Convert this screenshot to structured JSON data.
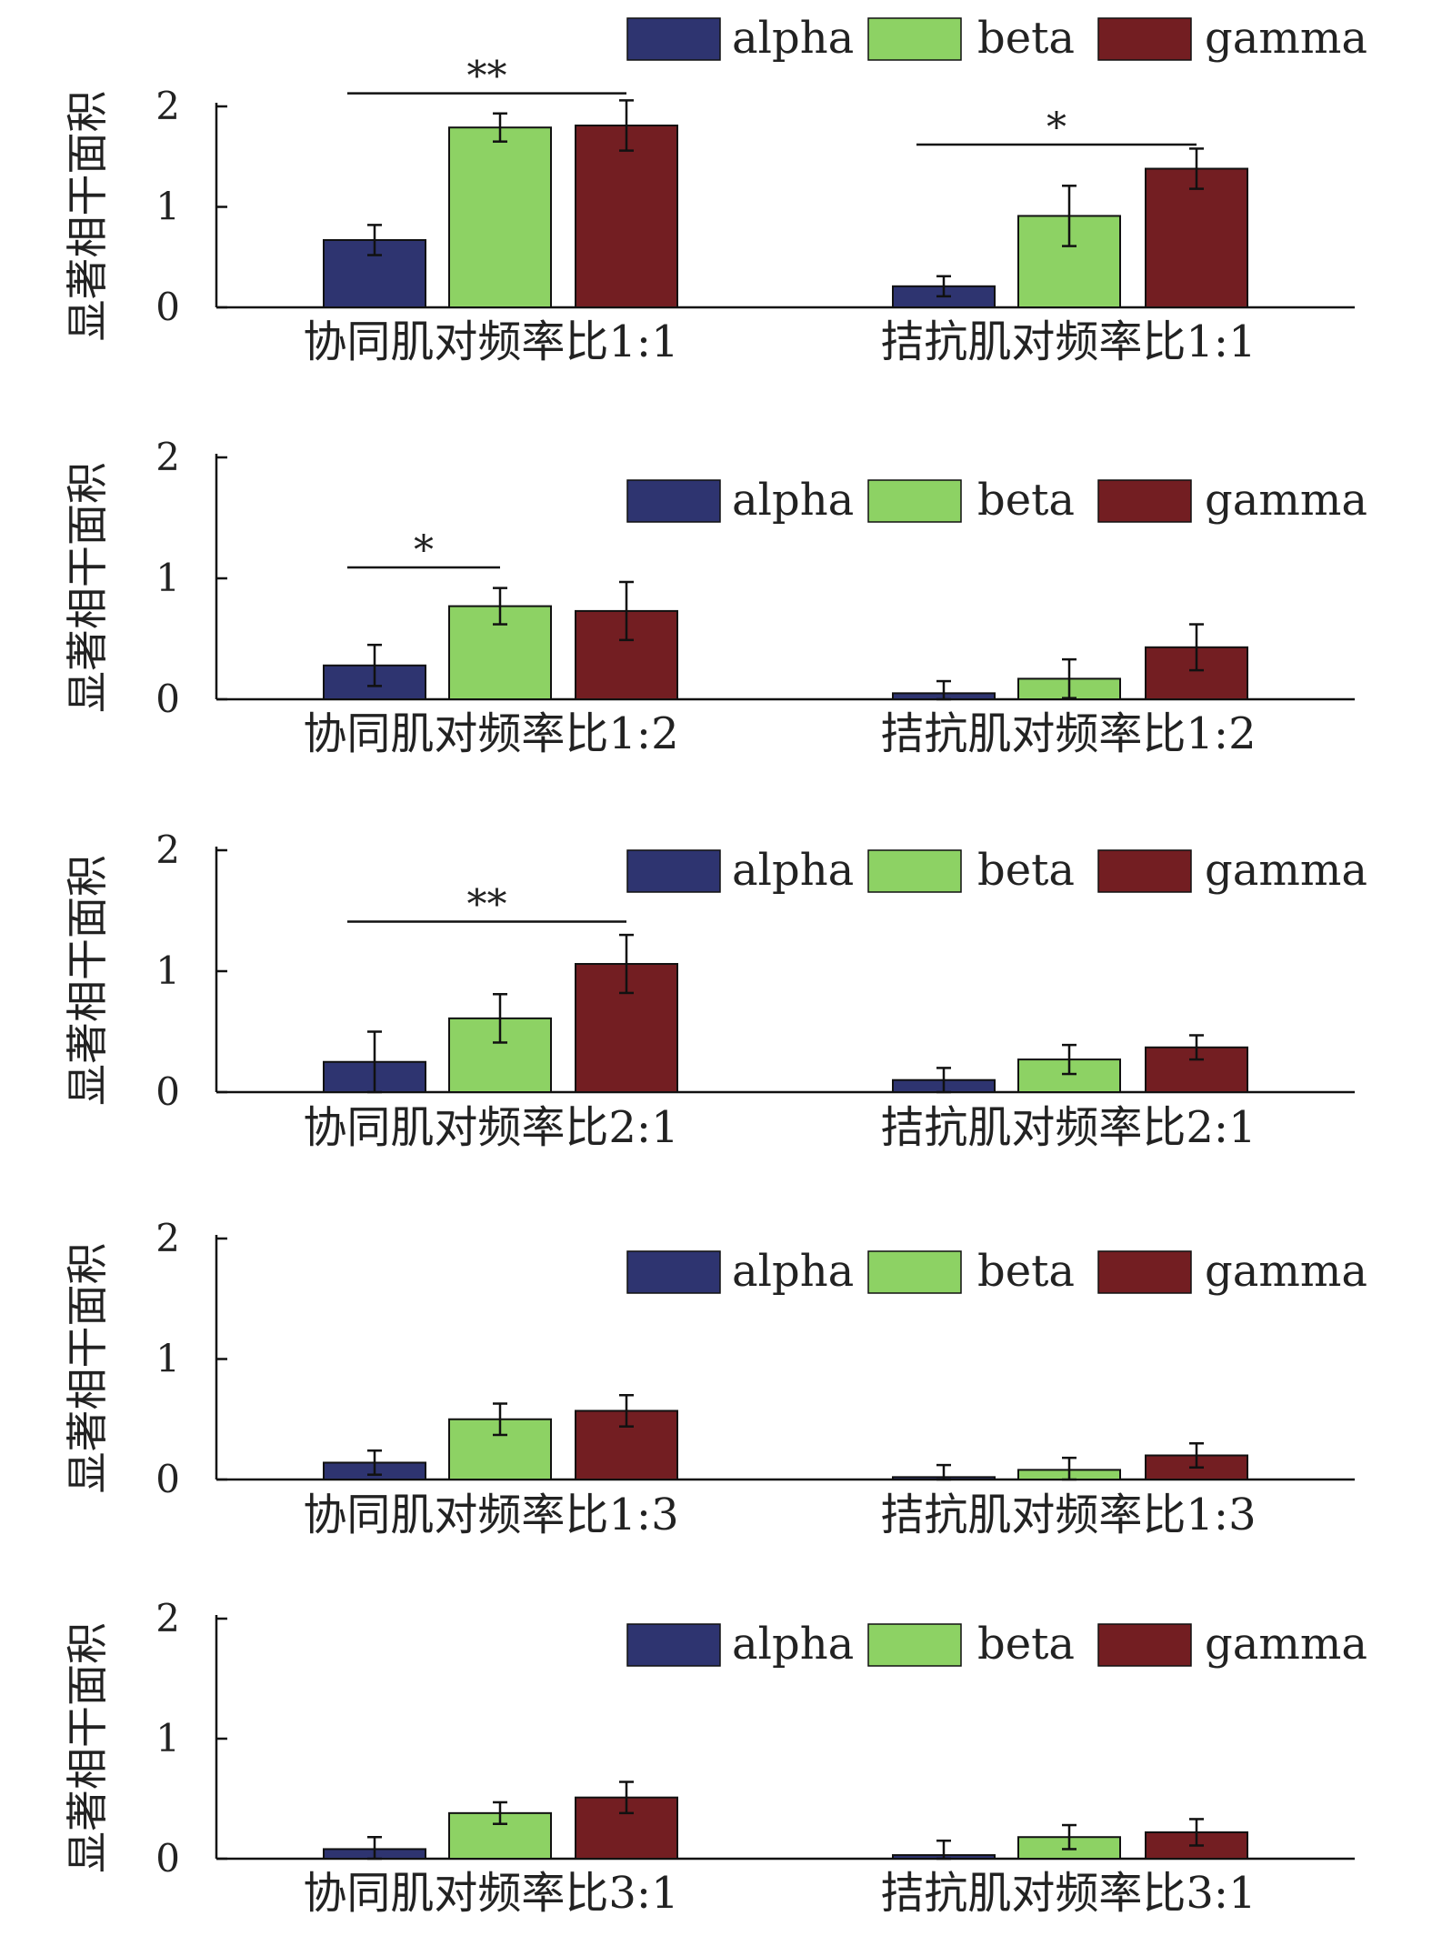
{
  "colors": {
    "alpha": "#2e3470",
    "beta": "#8dd264",
    "gamma": "#731e22",
    "axis": "#111111"
  },
  "legend_labels": [
    "alpha",
    "beta",
    "gamma"
  ],
  "chart_data": [
    {
      "type": "bar",
      "ylabel": "显著相干面积",
      "ylim": [
        0,
        2
      ],
      "yticks": [
        "0",
        "1",
        "2"
      ],
      "categories": [
        "协同肌对频率比1:1",
        "拮抗肌对频率比1:1"
      ],
      "legend_position": "top-right",
      "series": [
        {
          "name": "alpha",
          "values": [
            0.67,
            0.21
          ],
          "errors": [
            0.15,
            0.1
          ]
        },
        {
          "name": "beta",
          "values": [
            1.79,
            0.91
          ],
          "errors": [
            0.14,
            0.3
          ]
        },
        {
          "name": "gamma",
          "values": [
            1.81,
            1.38
          ],
          "errors": [
            0.25,
            0.2
          ]
        }
      ],
      "significance": [
        {
          "group": 0,
          "from": 0,
          "to": 2,
          "label": "**",
          "level": 2.13
        },
        {
          "group": 1,
          "from": 0,
          "to": 2,
          "label": "*",
          "level": 1.62
        }
      ]
    },
    {
      "type": "bar",
      "ylabel": "显著相干面积",
      "ylim": [
        0,
        2
      ],
      "yticks": [
        "0",
        "1",
        "2"
      ],
      "categories": [
        "协同肌对频率比1:2",
        "拮抗肌对频率比1:2"
      ],
      "legend_position": "top-right",
      "series": [
        {
          "name": "alpha",
          "values": [
            0.28,
            0.05
          ],
          "errors": [
            0.17,
            0.1
          ]
        },
        {
          "name": "beta",
          "values": [
            0.77,
            0.17
          ],
          "errors": [
            0.15,
            0.16
          ]
        },
        {
          "name": "gamma",
          "values": [
            0.73,
            0.43
          ],
          "errors": [
            0.24,
            0.19
          ]
        }
      ],
      "significance": [
        {
          "group": 0,
          "from": 0,
          "to": 1,
          "label": "*",
          "level": 1.09
        }
      ]
    },
    {
      "type": "bar",
      "ylabel": "显著相干面积",
      "ylim": [
        0,
        2
      ],
      "yticks": [
        "0",
        "1",
        "2"
      ],
      "categories": [
        "协同肌对频率比2:1",
        "拮抗肌对频率比2:1"
      ],
      "legend_position": "top-right",
      "series": [
        {
          "name": "alpha",
          "values": [
            0.25,
            0.1
          ],
          "errors": [
            0.25,
            0.1
          ]
        },
        {
          "name": "beta",
          "values": [
            0.61,
            0.27
          ],
          "errors": [
            0.2,
            0.12
          ]
        },
        {
          "name": "gamma",
          "values": [
            1.06,
            0.37
          ],
          "errors": [
            0.24,
            0.1
          ]
        }
      ],
      "significance": [
        {
          "group": 0,
          "from": 0,
          "to": 2,
          "label": "**",
          "level": 1.41
        }
      ]
    },
    {
      "type": "bar",
      "ylabel": "显著相干面积",
      "ylim": [
        0,
        2
      ],
      "yticks": [
        "0",
        "1",
        "2"
      ],
      "categories": [
        "协同肌对频率比1:3",
        "拮抗肌对频率比1:3"
      ],
      "legend_position": "top-right",
      "series": [
        {
          "name": "alpha",
          "values": [
            0.14,
            0.02
          ],
          "errors": [
            0.1,
            0.1
          ]
        },
        {
          "name": "beta",
          "values": [
            0.5,
            0.08
          ],
          "errors": [
            0.13,
            0.1
          ]
        },
        {
          "name": "gamma",
          "values": [
            0.57,
            0.2
          ],
          "errors": [
            0.13,
            0.1
          ]
        }
      ],
      "significance": []
    },
    {
      "type": "bar",
      "ylabel": "显著相干面积",
      "ylim": [
        0,
        2
      ],
      "yticks": [
        "0",
        "1",
        "2"
      ],
      "categories": [
        "协同肌对频率比3:1",
        "拮抗肌对频率比3:1"
      ],
      "legend_position": "top-right",
      "series": [
        {
          "name": "alpha",
          "values": [
            0.08,
            0.03
          ],
          "errors": [
            0.1,
            0.12
          ]
        },
        {
          "name": "beta",
          "values": [
            0.38,
            0.18
          ],
          "errors": [
            0.09,
            0.1
          ]
        },
        {
          "name": "gamma",
          "values": [
            0.51,
            0.22
          ],
          "errors": [
            0.13,
            0.11
          ]
        }
      ],
      "significance": []
    }
  ]
}
